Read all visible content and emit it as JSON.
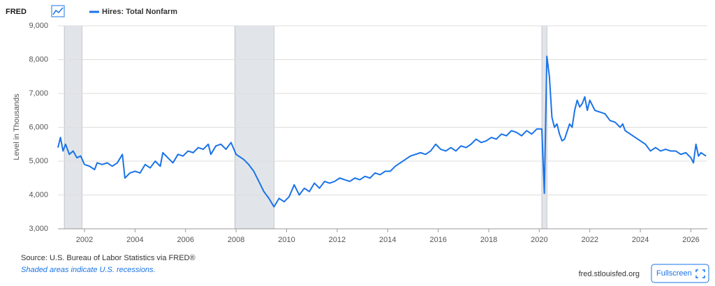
{
  "chart_data": {
    "type": "line",
    "logo": "FRED",
    "y_label": "Level in Thousands",
    "source": "Source: U.S. Bureau of Labor Statistics via FRED®",
    "note": "Shaded areas indicate U.S. recessions.",
    "site": "fred.stlouisfed.org",
    "button": "Fullscreen",
    "grid": true,
    "recession_color": "#e1e5ea",
    "recessions": [
      [
        2001.2,
        2001.9
      ],
      [
        2007.95,
        2009.5
      ],
      [
        2020.1,
        2020.3
      ]
    ],
    "xlim": [
      2000.95,
      2026.65
    ],
    "xticks": [
      2002,
      2004,
      2006,
      2008,
      2010,
      2012,
      2014,
      2016,
      2018,
      2020,
      2022,
      2024,
      2026
    ],
    "ylim": [
      3000,
      9000
    ],
    "yticks": [
      {
        "value": 3000,
        "label": "3,000"
      },
      {
        "value": 4000,
        "label": "4,000"
      },
      {
        "value": 5000,
        "label": "5,000"
      },
      {
        "value": 6000,
        "label": "6,000"
      },
      {
        "value": 7000,
        "label": "7,000"
      },
      {
        "value": 8000,
        "label": "8,000"
      },
      {
        "value": 9000,
        "label": "9,000"
      }
    ],
    "x": [
      2000.95,
      2001.05,
      2001.15,
      2001.25,
      2001.4,
      2001.55,
      2001.7,
      2001.85,
      2002.0,
      2002.2,
      2002.4,
      2002.5,
      2002.7,
      2002.9,
      2003.1,
      2003.3,
      2003.5,
      2003.6,
      2003.8,
      2004.0,
      2004.2,
      2004.4,
      2004.6,
      2004.8,
      2005.0,
      2005.1,
      2005.3,
      2005.5,
      2005.7,
      2005.9,
      2006.1,
      2006.3,
      2006.5,
      2006.7,
      2006.9,
      2007.0,
      2007.2,
      2007.4,
      2007.6,
      2007.8,
      2008.0,
      2008.3,
      2008.5,
      2008.7,
      2008.9,
      2009.1,
      2009.3,
      2009.5,
      2009.7,
      2009.9,
      2010.1,
      2010.3,
      2010.5,
      2010.7,
      2010.9,
      2011.1,
      2011.3,
      2011.5,
      2011.7,
      2011.9,
      2012.1,
      2012.3,
      2012.5,
      2012.7,
      2012.9,
      2013.1,
      2013.3,
      2013.5,
      2013.7,
      2013.9,
      2014.1,
      2014.3,
      2014.5,
      2014.7,
      2014.9,
      2015.1,
      2015.3,
      2015.5,
      2015.7,
      2015.9,
      2016.1,
      2016.3,
      2016.5,
      2016.7,
      2016.9,
      2017.1,
      2017.3,
      2017.5,
      2017.7,
      2017.9,
      2018.1,
      2018.3,
      2018.5,
      2018.7,
      2018.9,
      2019.1,
      2019.3,
      2019.5,
      2019.7,
      2019.9,
      2020.1,
      2020.2,
      2020.3,
      2020.4,
      2020.5,
      2020.6,
      2020.7,
      2020.8,
      2020.9,
      2021.0,
      2021.2,
      2021.3,
      2021.4,
      2021.5,
      2021.6,
      2021.7,
      2021.8,
      2021.9,
      2022.0,
      2022.2,
      2022.4,
      2022.6,
      2022.8,
      2023.0,
      2023.2,
      2023.3,
      2023.4,
      2023.6,
      2023.8,
      2024.0,
      2024.2,
      2024.4,
      2024.6,
      2024.8,
      2025.0,
      2025.2,
      2025.4,
      2025.6,
      2025.8,
      2026.0,
      2026.1,
      2026.2,
      2026.3,
      2026.4,
      2026.5,
      2026.6
    ],
    "series": [
      {
        "name": "Hires: Total Nonfarm",
        "color": "#1a73e8",
        "values": [
          5400,
          5700,
          5300,
          5500,
          5200,
          5300,
          5100,
          5150,
          4900,
          4850,
          4750,
          4950,
          4900,
          4950,
          4850,
          4950,
          5200,
          4500,
          4650,
          4700,
          4650,
          4900,
          4800,
          5000,
          4850,
          5250,
          5100,
          4950,
          5200,
          5150,
          5300,
          5250,
          5400,
          5350,
          5500,
          5200,
          5450,
          5500,
          5350,
          5550,
          5200,
          5050,
          4900,
          4700,
          4400,
          4100,
          3900,
          3650,
          3900,
          3800,
          3950,
          4300,
          4000,
          4200,
          4100,
          4350,
          4200,
          4400,
          4350,
          4400,
          4500,
          4450,
          4400,
          4500,
          4450,
          4550,
          4500,
          4650,
          4600,
          4700,
          4700,
          4850,
          4950,
          5050,
          5150,
          5200,
          5250,
          5200,
          5300,
          5500,
          5350,
          5300,
          5400,
          5300,
          5450,
          5400,
          5500,
          5650,
          5550,
          5600,
          5700,
          5650,
          5800,
          5750,
          5900,
          5850,
          5750,
          5900,
          5800,
          5950,
          5950,
          4050,
          8100,
          7500,
          6300,
          6000,
          6100,
          5800,
          5600,
          5650,
          6100,
          6000,
          6500,
          6800,
          6600,
          6700,
          6900,
          6500,
          6800,
          6500,
          6450,
          6400,
          6200,
          6150,
          6000,
          6100,
          5900,
          5800,
          5700,
          5600,
          5500,
          5300,
          5400,
          5300,
          5350,
          5300,
          5300,
          5200,
          5250,
          5100,
          4950,
          5500,
          5150,
          5250,
          5200,
          5150
        ]
      }
    ]
  }
}
